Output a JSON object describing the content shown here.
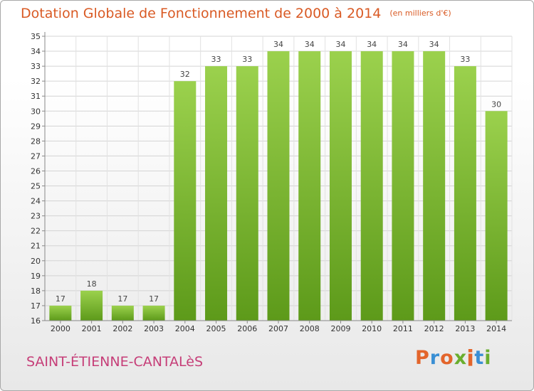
{
  "header": {
    "title": "Dotation Globale de Fonctionnement de 2000 à 2014",
    "unit": "(en milliers d'€)"
  },
  "footer": {
    "commune": "SAINT-ÉTIENNE-CANTALèS",
    "logo_text": "Proxiti",
    "logo_colors": [
      "#e3652b",
      "#3a8fd4",
      "#e3652b",
      "#6aae2e",
      "#e3652b",
      "#3a8fd4",
      "#6aae2e"
    ]
  },
  "colors": {
    "title": "#d95a24",
    "commune": "#c63e78",
    "bar_top": "#9bd14d",
    "bar_bottom": "#5d9a1a"
  },
  "chart_data": {
    "type": "bar",
    "categories": [
      "2000",
      "2001",
      "2002",
      "2003",
      "2004",
      "2005",
      "2006",
      "2007",
      "2008",
      "2009",
      "2010",
      "2011",
      "2012",
      "2013",
      "2014"
    ],
    "values": [
      17,
      18,
      17,
      17,
      32,
      33,
      33,
      34,
      34,
      34,
      34,
      34,
      34,
      33,
      30
    ],
    "title": "Dotation Globale de Fonctionnement de 2000 à 2014",
    "ylabel": "(en milliers d'€)",
    "ylim": [
      16,
      35
    ],
    "yticks": [
      16,
      17,
      18,
      19,
      20,
      21,
      22,
      23,
      24,
      25,
      26,
      27,
      28,
      29,
      30,
      31,
      32,
      33,
      34,
      35
    ],
    "grid": true,
    "data_labels": true
  }
}
